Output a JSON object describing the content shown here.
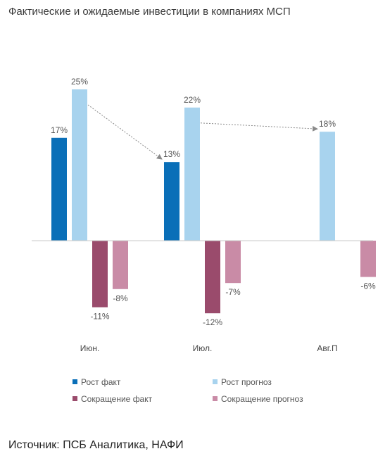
{
  "title": "Фактические и ожидаемые инвестиции в компаниях МСП",
  "source": "Источник: ПСБ Аналитика, НАФИ",
  "chart_data": {
    "type": "bar",
    "categories": [
      "Июн.",
      "Июл.",
      "Авг.П"
    ],
    "unit": "%",
    "ylim": [
      -14,
      28
    ],
    "grid": false,
    "legend_position": "bottom",
    "series": [
      {
        "name": "Рост факт",
        "color": "#0a6fb8",
        "values": [
          17,
          13,
          null
        ],
        "labels": [
          "17%",
          "13%",
          ""
        ]
      },
      {
        "name": "Рост прогноз",
        "color": "#a8d3ee",
        "values": [
          25,
          22,
          18
        ],
        "labels": [
          "25%",
          "22%",
          "18%"
        ]
      },
      {
        "name": "Сокращение факт",
        "color": "#9a4b6c",
        "values": [
          -11,
          -12,
          null
        ],
        "labels": [
          "-11%",
          "-12%",
          ""
        ]
      },
      {
        "name": "Сокращение прогноз",
        "color": "#c98ba6",
        "values": [
          -8,
          -7,
          -6
        ],
        "labels": [
          "-8%",
          "-7%",
          "-6%"
        ]
      }
    ],
    "annotations": [
      {
        "type": "arrow",
        "from": {
          "series": 1,
          "category": 0
        },
        "to": {
          "series": 0,
          "category": 1
        }
      },
      {
        "type": "arrow",
        "from": {
          "series": 1,
          "category": 1
        },
        "to": {
          "series": 1,
          "category": 2
        }
      }
    ]
  }
}
